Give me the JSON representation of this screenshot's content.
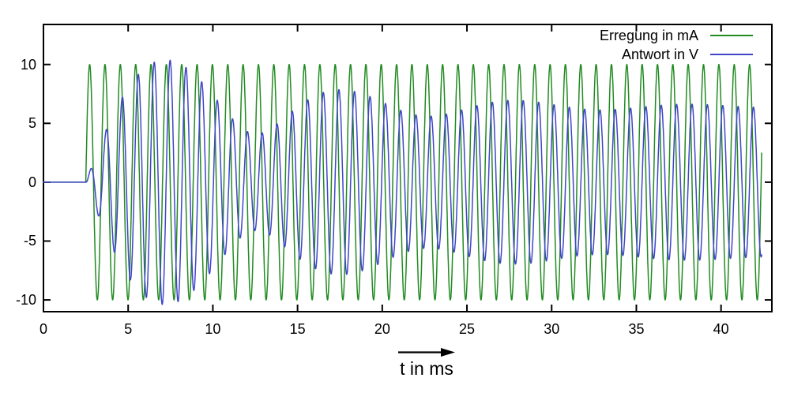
{
  "chart_data": {
    "type": "line",
    "title": "",
    "xlabel": "t in ms",
    "ylabel": "",
    "x_range": [
      0,
      43
    ],
    "y_range": [
      -11,
      13.4
    ],
    "x_ticks": [
      0,
      5,
      10,
      15,
      20,
      25,
      30,
      35,
      40
    ],
    "y_ticks": [
      -10,
      -5,
      0,
      5,
      10
    ],
    "grid": false,
    "legend_position": "top-right inside",
    "axis_color": "#000000",
    "t_end_ms": 42.4,
    "sample_step_ms": 0.01,
    "series": [
      {
        "name": "Erregung in mA",
        "unit": "mA",
        "color": "#228B22",
        "model": {
          "type": "sine_burst",
          "t_start_ms": 2.5,
          "amplitude": 10,
          "period_ms": 0.906
        },
        "description": "0 until 2.5 ms, then 10*sin(2*pi*(t-2.5)/0.906)"
      },
      {
        "name": "Antwort in V",
        "unit": "V",
        "color": "#4046C8",
        "model": {
          "type": "driven_oscillator",
          "t_start_ms": 2.5,
          "steady_amplitude": 6.45,
          "drive_period_ms": 0.906,
          "natural_period_ms": 0.994,
          "decay_tau_ms": 10,
          "phase_deg": -90
        },
        "beat_period_ms": 10.2,
        "envelope_keypoints": [
          {
            "t": 2.5,
            "a": 0.0
          },
          {
            "t": 7.6,
            "a": 10.4
          },
          {
            "t": 12.7,
            "a": 4.1
          },
          {
            "t": 17.8,
            "a": 7.8
          },
          {
            "t": 22.9,
            "a": 5.6
          },
          {
            "t": 28.0,
            "a": 6.9
          },
          {
            "t": 33.1,
            "a": 6.1
          },
          {
            "t": 38.2,
            "a": 6.6
          },
          {
            "t": 42.4,
            "a": 6.4
          }
        ],
        "description": "response of resonant circuit: steady 6.45 V sine lagging 90 deg, plus decaying natural oscillation producing beats"
      }
    ]
  }
}
